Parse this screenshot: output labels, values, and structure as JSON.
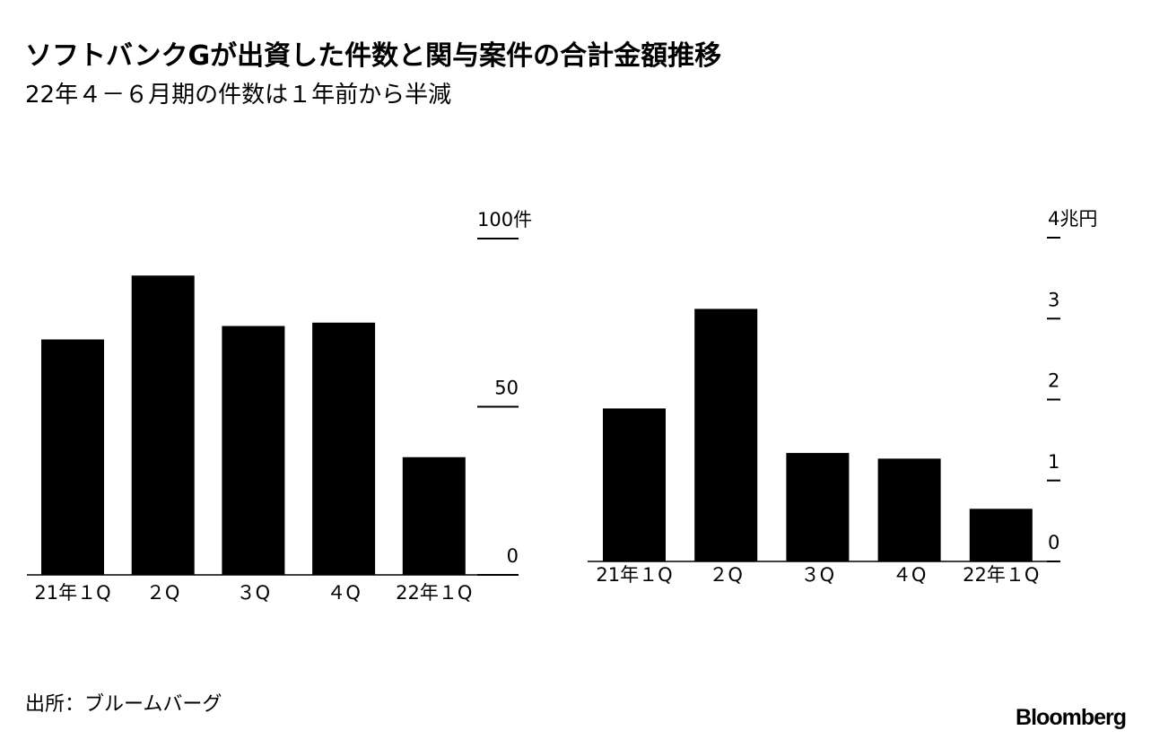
{
  "header": {
    "title": "ソフトバンクGが出資した件数と関与案件の合計金額推移",
    "subtitle": "22年４－６月期の件数は１年前から半減"
  },
  "chart_data": [
    {
      "type": "bar",
      "categories": [
        "21年１Q",
        "２Q",
        "３Q",
        "４Q",
        "22年１Q"
      ],
      "values": [
        70,
        89,
        74,
        75,
        35
      ],
      "color": "#000000",
      "ylim": [
        0,
        100
      ],
      "yticks": [
        0,
        50,
        {
          "value": 100,
          "label": "100件"
        }
      ]
    },
    {
      "type": "bar",
      "categories": [
        "21年１Q",
        "２Q",
        "３Q",
        "４Q",
        "22年１Q"
      ],
      "values": [
        1.89,
        3.12,
        1.34,
        1.27,
        0.65
      ],
      "color": "#000000",
      "ylim": [
        0,
        4
      ],
      "yticks": [
        0,
        1,
        2,
        3,
        {
          "value": 4,
          "label": "4兆円"
        }
      ]
    }
  ],
  "footer": {
    "source": "出所：ブルームバーグ",
    "brand": "Bloomberg"
  }
}
